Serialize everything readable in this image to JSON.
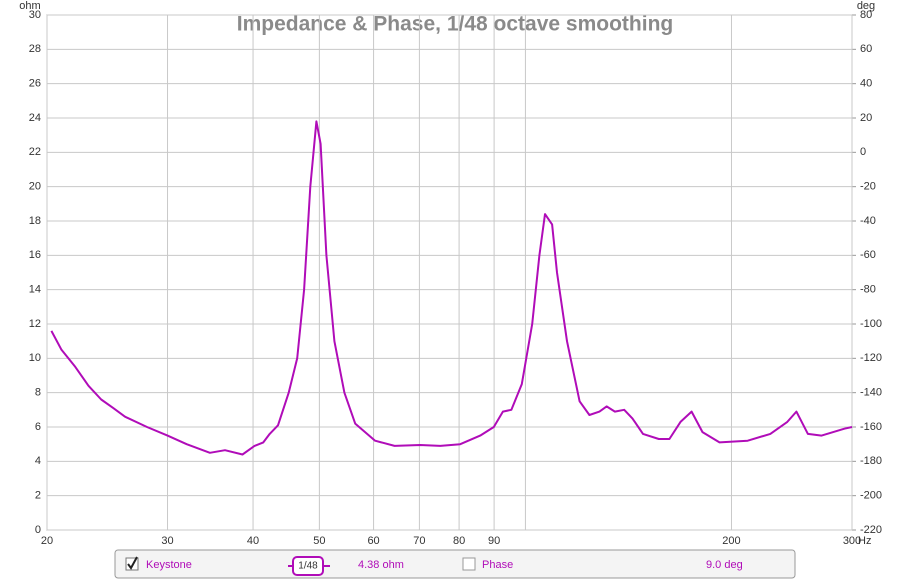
{
  "chart_data": {
    "type": "line",
    "title": "Impedance & Phase, 1/48 octave smoothing",
    "y_label": "ohm",
    "y2_label": "deg",
    "x_label": "Hz",
    "log_x": true,
    "grid": true,
    "xlim": [
      20,
      300
    ],
    "xticks": [
      20,
      30,
      40,
      50,
      60,
      70,
      80,
      90,
      {
        "value": 100,
        "label": null
      },
      200,
      300
    ],
    "ylim": [
      0,
      30
    ],
    "yticks": [
      0,
      2,
      4,
      6,
      8,
      10,
      12,
      14,
      16,
      18,
      20,
      22,
      24,
      26,
      28,
      30
    ],
    "y2lim": [
      -220,
      80
    ],
    "y2ticks": [
      -220,
      -200,
      -180,
      -160,
      -140,
      -120,
      -100,
      -80,
      -60,
      -40,
      -20,
      0,
      20,
      40,
      60,
      80
    ],
    "x": [
      20.3,
      21,
      22,
      23,
      24,
      25,
      26,
      28,
      30,
      32,
      34.6,
      36.4,
      38.6,
      40.2,
      41.4,
      42.3,
      43.5,
      45.1,
      46.4,
      47.5,
      48.5,
      49.5,
      50.2,
      51.2,
      52.6,
      54.4,
      56.4,
      60.3,
      64.4,
      70.2,
      75.1,
      80.3,
      85.9,
      89.9,
      92.7,
      95.4,
      98.8,
      102.3,
      104.8,
      106.8,
      109.4,
      111.2,
      115,
      120,
      124,
      128.3,
      131.4,
      135.1,
      139.4,
      143.3,
      148.5,
      156.6,
      162.3,
      168.5,
      174.9,
      181.4,
      192.1,
      211.2,
      227.9,
      241.3,
      248.8,
      258.6,
      270.8,
      292.4,
      300
    ],
    "series": [
      {
        "name": "Keystone",
        "color": "#b00cb8",
        "values": [
          11.6,
          10.5,
          9.5,
          8.4,
          7.6,
          7.1,
          6.6,
          6.0,
          5.5,
          5.0,
          4.5,
          4.65,
          4.4,
          4.9,
          5.1,
          5.6,
          6.1,
          8,
          10,
          14,
          20,
          23.8,
          22.5,
          16,
          11,
          8,
          6.2,
          5.2,
          4.9,
          4.95,
          4.9,
          5.0,
          5.5,
          6.0,
          6.9,
          7.0,
          8.5,
          12,
          16,
          18.4,
          17.8,
          15,
          11,
          7.5,
          6.7,
          6.9,
          7.2,
          6.9,
          7.0,
          6.5,
          5.6,
          5.3,
          5.3,
          6.3,
          6.9,
          5.7,
          5.1,
          5.2,
          5.6,
          6.3,
          6.9,
          5.6,
          5.5,
          5.9,
          6.0
        ]
      }
    ],
    "legend": {
      "smoothing": "1/48",
      "cursor_value": "4.38 ohm",
      "phase_name": "Phase",
      "phase_value": "9.0 deg"
    }
  }
}
